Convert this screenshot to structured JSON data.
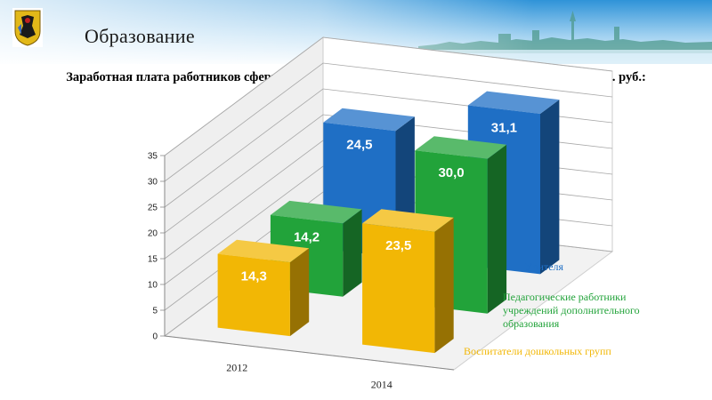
{
  "header": {
    "title": "Образование",
    "logo_icon": "city-coat-of-arms-icon",
    "colors": {
      "sky_top": "#2c8fd6",
      "sky_bottom": "#e8f4fc"
    }
  },
  "chart_data": {
    "type": "bar",
    "title": "Заработная плата работников сферы образования в 2014 году по сравнению с 2012 годом, тыс. руб.:",
    "categories": [
      "2012",
      "2014"
    ],
    "ylim": [
      0,
      35
    ],
    "yticks": [
      "0",
      "5",
      "10",
      "15",
      "20",
      "25",
      "30",
      "35"
    ],
    "grid": true,
    "legend_position": "right",
    "series": [
      {
        "name": "Учителя",
        "values": [
          24.5,
          31.1
        ],
        "labels": [
          "24,5",
          "31,1"
        ],
        "color": "#1f6fc5"
      },
      {
        "name": "Педагогические работники учреждений дополнительного образования",
        "values": [
          14.2,
          30.0
        ],
        "labels": [
          "14,2",
          "30,0"
        ],
        "color": "#22a33a"
      },
      {
        "name": "Воспитатели дошкольных групп",
        "values": [
          14.3,
          23.5
        ],
        "labels": [
          "14,3",
          "23,5"
        ],
        "color": "#f2b705"
      }
    ]
  }
}
